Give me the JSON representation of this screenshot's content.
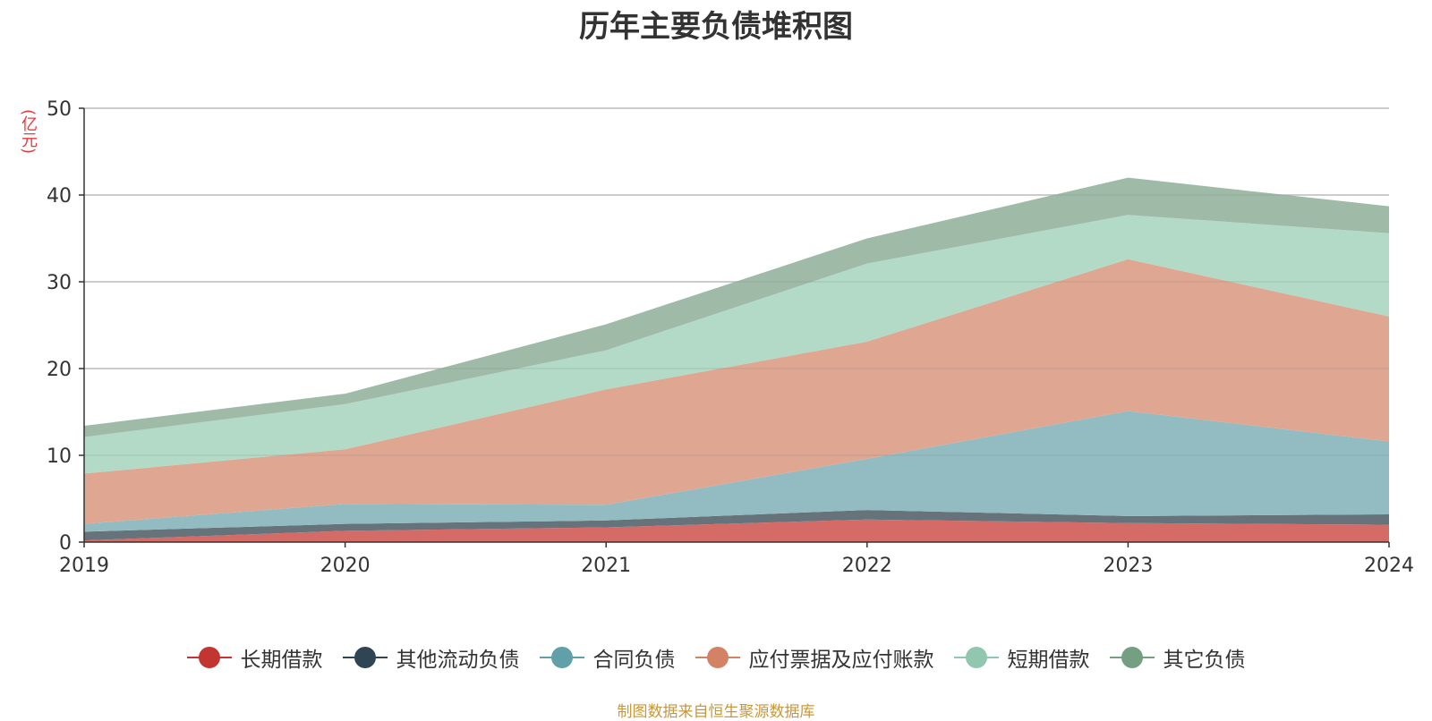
{
  "title": "历年主要负债堆积图",
  "unit_label": "(亿元)",
  "source_note": "制图数据来自恒生聚源数据库",
  "chart_data": {
    "type": "area",
    "stacked": true,
    "title": "历年主要负债堆积图",
    "ylabel": "(亿元)",
    "x": [
      "2019",
      "2020",
      "2021",
      "2022",
      "2023",
      "2024"
    ],
    "ylim": [
      0,
      50
    ],
    "yticks": [
      0,
      10,
      20,
      30,
      40,
      50
    ],
    "grid": true,
    "legend_position": "bottom",
    "series": [
      {
        "name": "长期借款",
        "color": "#c23531",
        "fill": "#d46b66",
        "values": [
          0.2,
          1.3,
          1.7,
          2.6,
          2.2,
          2.0
        ]
      },
      {
        "name": "其他流动负债",
        "color": "#2f4554",
        "fill": "#66737a",
        "values": [
          1.0,
          0.8,
          0.8,
          1.1,
          0.8,
          1.2
        ]
      },
      {
        "name": "合同负债",
        "color": "#61a0a8",
        "fill": "#92bcc1",
        "values": [
          0.9,
          2.3,
          1.8,
          5.9,
          12.1,
          8.4
        ]
      },
      {
        "name": "应付票据及应付账款",
        "color": "#d48265",
        "fill": "#dfa692",
        "values": [
          5.8,
          6.3,
          13.3,
          13.5,
          17.5,
          14.4
        ]
      },
      {
        "name": "短期借款",
        "color": "#91c7ae",
        "fill": "#b2dac7",
        "values": [
          4.2,
          5.2,
          4.5,
          9.0,
          5.1,
          9.6
        ]
      },
      {
        "name": "其它负债",
        "color": "#749f83",
        "fill": "#9fbba8",
        "values": [
          1.3,
          1.2,
          3.0,
          2.9,
          4.3,
          3.1
        ]
      }
    ]
  }
}
